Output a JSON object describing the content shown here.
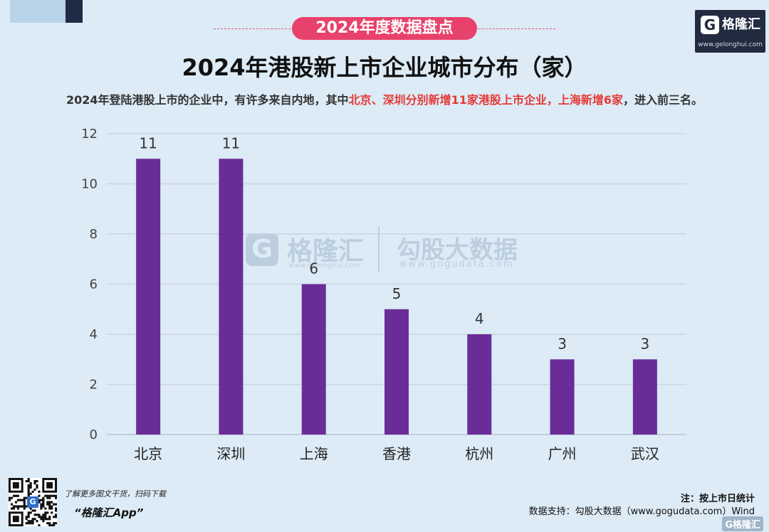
{
  "header": {
    "section_badge": "2024年度数据盘点",
    "title": "2024年港股新上市企业城市分布（家）",
    "subtitle_part1": "2024年登陆港股上市的企业中，有许多来自内地，其中",
    "subtitle_highlight": "北京、深圳分别新增11家港股上市企业，上海新增6家",
    "subtitle_part2": "，进入前三名。"
  },
  "logo": {
    "mark": "G",
    "name": "格隆汇",
    "url": "www.gelonghui.com"
  },
  "watermark": {
    "mark": "G",
    "name1": "格隆汇",
    "url1": "www.gelonghui.com",
    "name2": "勾股大数据",
    "url2": "www.gogudata.com"
  },
  "chart_data": {
    "type": "bar",
    "title": "2024年港股新上市企业城市分布（家）",
    "categories": [
      "北京",
      "深圳",
      "上海",
      "香港",
      "杭州",
      "广州",
      "武汉"
    ],
    "values": [
      11,
      11,
      6,
      5,
      4,
      3,
      3
    ],
    "yticks": [
      "0",
      "2",
      "4",
      "6",
      "8",
      "10",
      "12"
    ],
    "ylim": [
      0,
      12
    ],
    "grid": true,
    "bar_color": "#6a2d98",
    "data_labels": true,
    "xlabel": "",
    "ylabel": ""
  },
  "footer": {
    "qr_center": "G",
    "promo_line1": "了解更多图文干货，扫码下载",
    "promo_line2": "“格隆汇App”",
    "note": "注：按上市日统计",
    "source": "数据支持：勾股大数据（www.gogudata.com）Wind",
    "corner_logo": "G格隆汇"
  }
}
